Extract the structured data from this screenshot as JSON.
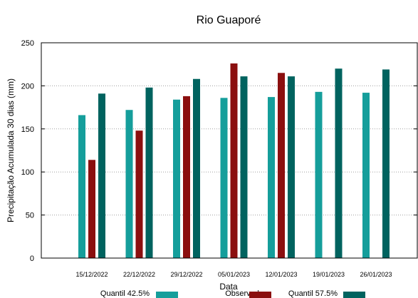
{
  "chart_data": {
    "type": "bar",
    "title": "Rio Guaporé",
    "xlabel": "Data",
    "ylabel": "Precipitação Acumulada 30 dias (mm)",
    "ylim": [
      0,
      250
    ],
    "yticks": [
      "0",
      "50",
      "100",
      "150",
      "200",
      "250"
    ],
    "categories": [
      "15/12/2022",
      "22/12/2022",
      "29/12/2022",
      "05/01/2023",
      "12/01/2023",
      "19/01/2023",
      "26/01/2023"
    ],
    "series": [
      {
        "name": "Quantil 42.5%",
        "color": "#159e9b",
        "values": [
          166,
          172,
          184,
          186,
          187,
          193,
          192
        ]
      },
      {
        "name": "Observado",
        "color": "#8b0f0f",
        "values": [
          114,
          148,
          188,
          226,
          215,
          null,
          null
        ]
      },
      {
        "name": "Quantil 57.5%",
        "color": "#00635f",
        "values": [
          191,
          198,
          208,
          211,
          211,
          220,
          219
        ]
      }
    ],
    "grid": true,
    "legend_position": "bottom"
  }
}
